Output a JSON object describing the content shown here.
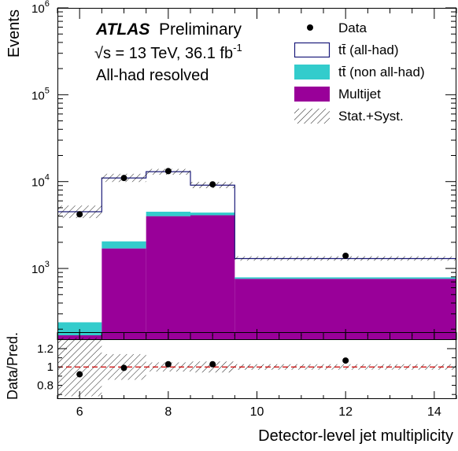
{
  "chart_data": [
    {
      "type": "bar",
      "panel": "main",
      "ylabel": "Events",
      "yscale": "log",
      "ylim": [
        150,
        1000000
      ],
      "xlim": [
        5.5,
        14.5
      ],
      "y_tick_labels": [
        {
          "base": "10",
          "exp": "3",
          "value": 1000
        },
        {
          "base": "10",
          "exp": "4",
          "value": 10000
        },
        {
          "base": "10",
          "exp": "5",
          "value": 100000
        },
        {
          "base": "10",
          "exp": "6",
          "value": 1000000
        }
      ],
      "annotations": {
        "experiment": "ATLAS",
        "status": "Preliminary",
        "energy_prefix": "√s = 13 TeV, 36.1 fb",
        "energy_exp": "-1",
        "selection": "All-had resolved"
      },
      "legend_position": "top-right",
      "legend": {
        "data": "Data",
        "tt_allhad": "tt̄ (all-had)",
        "tt_nonallhad": "tt̄ (non all-had)",
        "multijet": "Multijet",
        "uncertainty": "Stat.+Syst."
      },
      "colors": {
        "tt_allhad_line": "#1a1a7a",
        "tt_nonallhad": "#33cccc",
        "multijet": "#990099",
        "data": "#000000",
        "hatch": "#000000"
      },
      "bins": [
        {
          "low": 5.5,
          "high": 6.5,
          "multijet": 170,
          "non_allhad_top": 240,
          "total": 4500,
          "unc_low": 3800,
          "unc_high": 5300
        },
        {
          "low": 6.5,
          "high": 7.5,
          "multijet": 1700,
          "non_allhad_top": 2050,
          "total": 11000,
          "unc_low": 9900,
          "unc_high": 12300
        },
        {
          "low": 7.5,
          "high": 8.5,
          "multijet": 4000,
          "non_allhad_top": 4500,
          "total": 13000,
          "unc_low": 12000,
          "unc_high": 14000
        },
        {
          "low": 8.5,
          "high": 9.5,
          "multijet": 4100,
          "non_allhad_top": 4400,
          "total": 9100,
          "unc_low": 8400,
          "unc_high": 9900
        },
        {
          "low": 9.5,
          "high": 14.5,
          "multijet": 760,
          "non_allhad_top": 790,
          "total": 1300,
          "unc_low": 1230,
          "unc_high": 1380
        }
      ],
      "data_points": [
        {
          "x": 6,
          "y": 4200
        },
        {
          "x": 7,
          "y": 11000
        },
        {
          "x": 8,
          "y": 13200
        },
        {
          "x": 9,
          "y": 9300
        },
        {
          "x": 12,
          "y": 1400
        }
      ]
    },
    {
      "type": "scatter",
      "panel": "ratio",
      "ylabel": "Data/Pred.",
      "xlabel": "Detector-level jet multiplicity",
      "ylim": [
        0.65,
        1.38
      ],
      "xlim": [
        5.5,
        14.5
      ],
      "x_tick_labels": [
        "6",
        "8",
        "10",
        "12",
        "14"
      ],
      "y_tick_labels": [
        "0.8",
        "1",
        "1.2"
      ],
      "reference_line": 1.0,
      "reference_color": "#cc0000",
      "uncertainty_band": [
        {
          "low": 5.5,
          "high": 6.5,
          "down": 0.68,
          "up": 1.32
        },
        {
          "low": 6.5,
          "high": 7.5,
          "down": 0.86,
          "up": 1.14
        },
        {
          "low": 7.5,
          "high": 8.5,
          "down": 0.95,
          "up": 1.05
        },
        {
          "low": 8.5,
          "high": 9.5,
          "down": 0.94,
          "up": 1.06
        },
        {
          "low": 9.5,
          "high": 14.5,
          "down": 0.97,
          "up": 1.03
        }
      ],
      "points": [
        {
          "x": 6,
          "y": 0.92
        },
        {
          "x": 7,
          "y": 0.99
        },
        {
          "x": 8,
          "y": 1.03
        },
        {
          "x": 9,
          "y": 1.03
        },
        {
          "x": 12,
          "y": 1.07
        }
      ]
    }
  ]
}
